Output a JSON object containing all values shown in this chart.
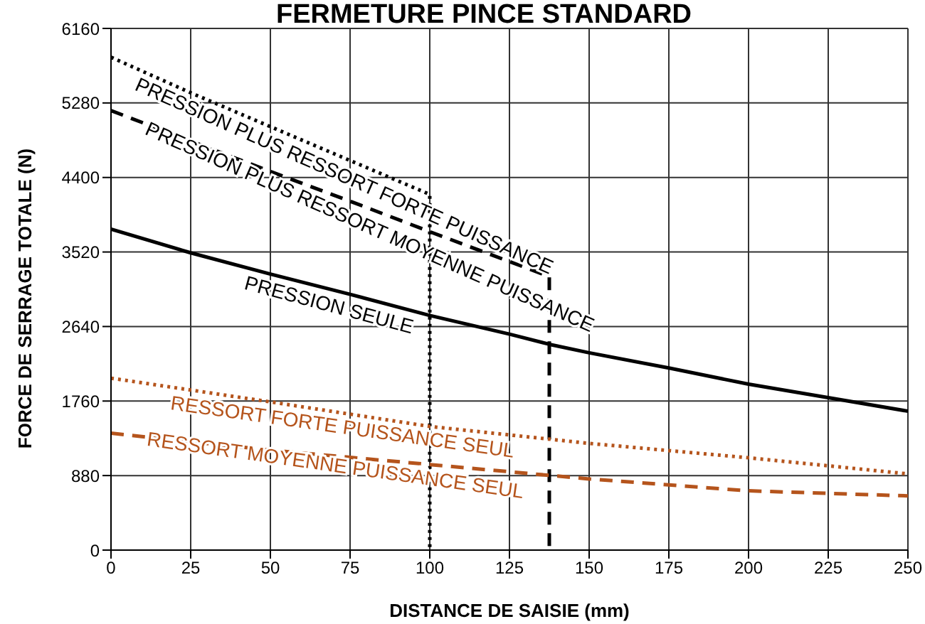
{
  "chart_data": {
    "type": "line",
    "title": "FERMETURE PINCE STANDARD",
    "xlabel": "DISTANCE DE SAISIE (mm)",
    "ylabel": "FORCE DE SERRAGE TOTALE (N)",
    "xlim": [
      0,
      250
    ],
    "xticks": [
      0,
      25,
      50,
      75,
      100,
      125,
      150,
      175,
      200,
      225,
      250
    ],
    "ylim": [
      0,
      6160
    ],
    "yticks": [
      0,
      880,
      1760,
      2640,
      3520,
      4400,
      5280,
      6160
    ],
    "grid": true,
    "marker": "none",
    "series": [
      {
        "name": "PRESSION PLUS RESSORT FORTE PUISSANCE",
        "color": "#000000",
        "line_style": "dotted",
        "x": [
          0,
          25,
          50,
          75,
          100,
          100
        ],
        "values": [
          5820,
          5400,
          5000,
          4600,
          4200,
          0
        ]
      },
      {
        "name": "PRESSION PLUS RESSORT MOYENNE PUISSANCE",
        "color": "#000000",
        "line_style": "dashed",
        "x": [
          0,
          25,
          50,
          75,
          100,
          137.5,
          137.5
        ],
        "values": [
          5190,
          4830,
          4470,
          4120,
          3760,
          3230,
          0
        ]
      },
      {
        "name": "PRESSION SEULE",
        "color": "#000000",
        "line_style": "solid",
        "x": [
          0,
          25,
          50,
          75,
          100,
          125,
          137.5,
          150,
          175,
          200,
          225,
          250
        ],
        "values": [
          3790,
          3510,
          3260,
          3020,
          2770,
          2550,
          2430,
          2330,
          2150,
          1960,
          1800,
          1640
        ]
      },
      {
        "name": "RESSORT FORTE PUISSANCE SEUL",
        "color": "#b5541c",
        "line_style": "dotted",
        "x": [
          0,
          50,
          100,
          150,
          200,
          250
        ],
        "values": [
          2030,
          1750,
          1460,
          1260,
          1090,
          900
        ]
      },
      {
        "name": "RESSORT MOYENNE PUISSANCE SEUL",
        "color": "#b5541c",
        "line_style": "dashed",
        "x": [
          0,
          50,
          100,
          150,
          200,
          250
        ],
        "values": [
          1380,
          1180,
          1010,
          840,
          700,
          640
        ]
      }
    ]
  }
}
